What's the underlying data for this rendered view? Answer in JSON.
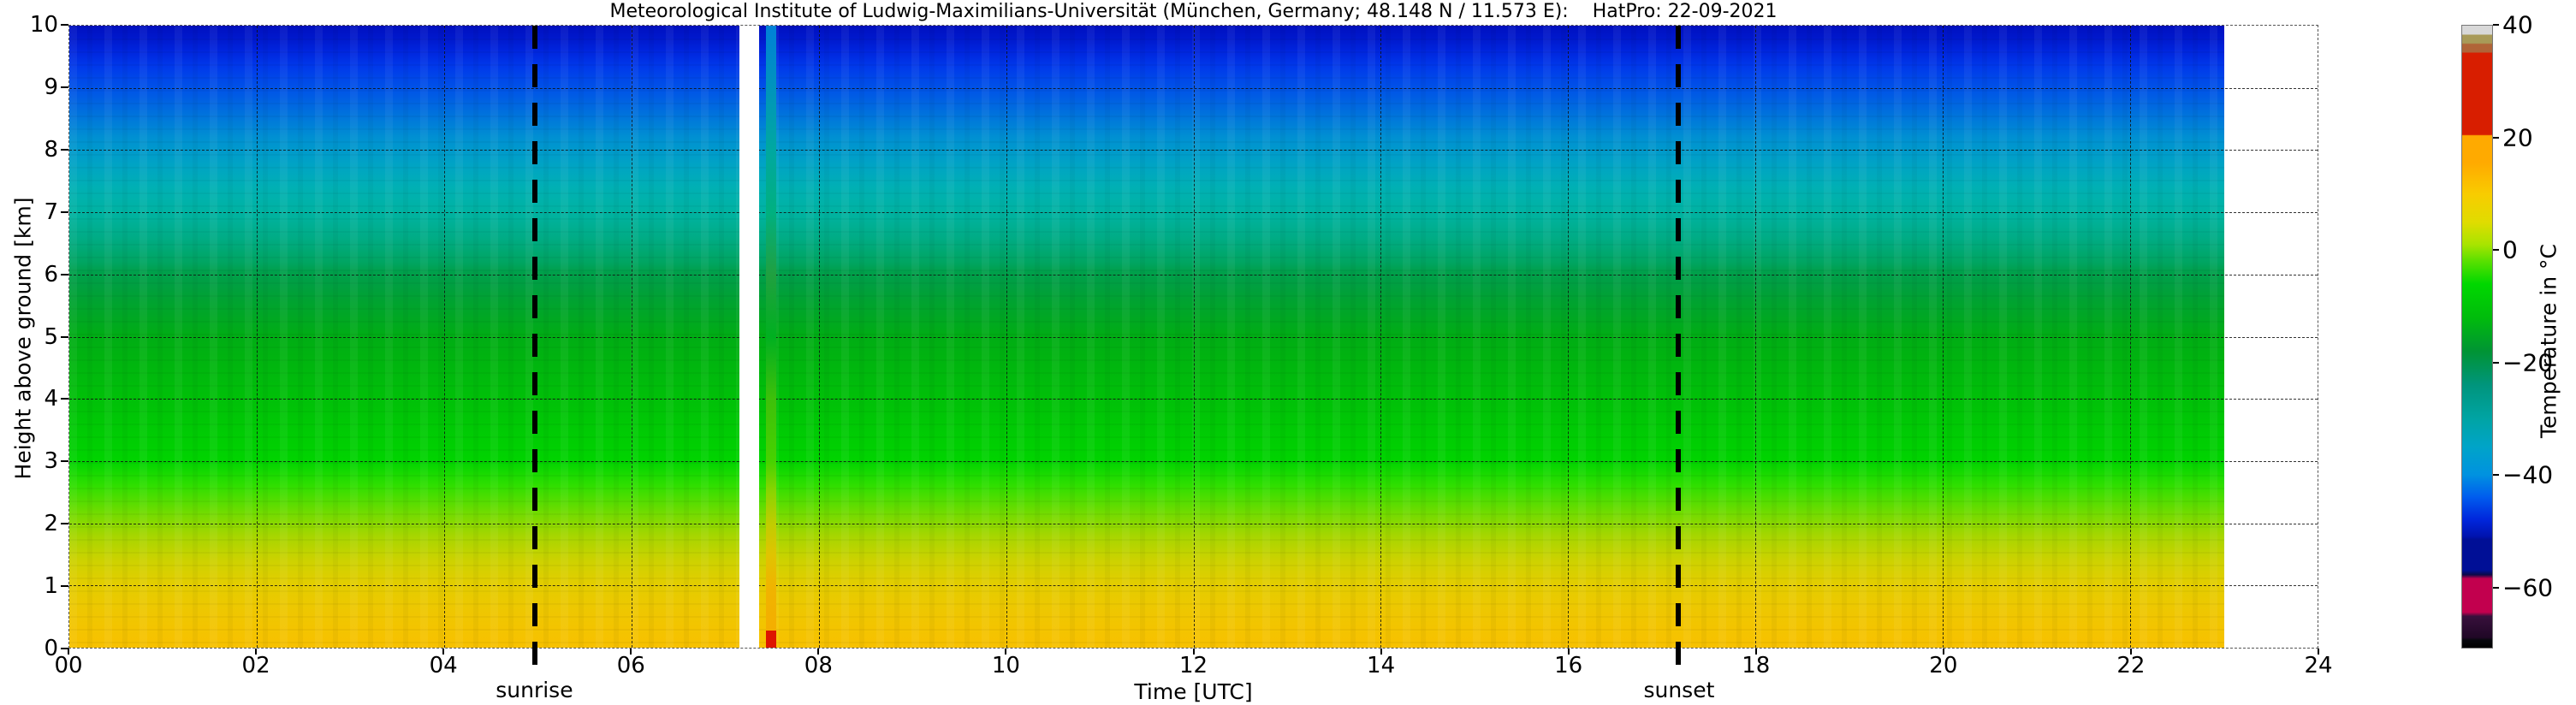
{
  "figure": {
    "title": "Meteorological Institute of Ludwig-Maximilians-Universität (München, Germany; 48.148 N / 11.573 E):    HatPro: 22-09-2021"
  },
  "axes": {
    "x_label": "Time [UTC]",
    "y_label": "Height above ground [km]"
  },
  "colorbar": {
    "label": "Temperature in  °C",
    "range": [
      -70.8,
      40
    ],
    "ticks": [
      {
        "value": 40,
        "label": "40"
      },
      {
        "value": 20,
        "label": "20"
      },
      {
        "value": 0,
        "label": "0"
      },
      {
        "value": -20,
        "label": "−20"
      },
      {
        "value": -40,
        "label": "−40"
      },
      {
        "value": -60,
        "label": "−60"
      }
    ]
  },
  "events": {
    "sunrise": {
      "label": "sunrise",
      "hour": 4.97
    },
    "sunset": {
      "label": "sunset",
      "hour": 17.18
    }
  },
  "chart_data": {
    "type": "heatmap",
    "title": "Meteorological Institute of Ludwig-Maximilians-Universität (München, Germany; 48.148 N / 11.573 E):    HatPro: 22-09-2021",
    "instrument": "HatPro",
    "date": "22-09-2021",
    "xlabel": "Time [UTC]",
    "ylabel": "Height above ground [km]",
    "zlabel": "Temperature in  °C",
    "x_range_hours": [
      0,
      24
    ],
    "y_range_km": [
      0,
      10
    ],
    "grid": {
      "x_hours": [
        2,
        4,
        6,
        8,
        10,
        12,
        14,
        16,
        18,
        20,
        22
      ],
      "y_km": [
        1,
        2,
        3,
        4,
        5,
        6,
        7,
        8,
        9
      ]
    },
    "x_ticks": [
      {
        "hour": 0,
        "label": "00"
      },
      {
        "hour": 2,
        "label": "02"
      },
      {
        "hour": 4,
        "label": "04"
      },
      {
        "hour": 6,
        "label": "06"
      },
      {
        "hour": 8,
        "label": "08"
      },
      {
        "hour": 10,
        "label": "10"
      },
      {
        "hour": 12,
        "label": "12"
      },
      {
        "hour": 14,
        "label": "14"
      },
      {
        "hour": 16,
        "label": "16"
      },
      {
        "hour": 18,
        "label": "18"
      },
      {
        "hour": 20,
        "label": "20"
      },
      {
        "hour": 22,
        "label": "22"
      },
      {
        "hour": 24,
        "label": "24"
      }
    ],
    "y_ticks": [
      {
        "km": 0,
        "label": "0"
      },
      {
        "km": 1,
        "label": "1"
      },
      {
        "km": 2,
        "label": "2"
      },
      {
        "km": 3,
        "label": "3"
      },
      {
        "km": 4,
        "label": "4"
      },
      {
        "km": 5,
        "label": "5"
      },
      {
        "km": 6,
        "label": "6"
      },
      {
        "km": 7,
        "label": "7"
      },
      {
        "km": 8,
        "label": "8"
      },
      {
        "km": 9,
        "label": "9"
      },
      {
        "km": 10,
        "label": "10"
      }
    ],
    "data_time_extent_hours": [
      0,
      23
    ],
    "data_gap_hours": [
      7.15,
      7.36
    ],
    "anomaly_column": {
      "start_hour": 7.44,
      "end_hour": 7.55,
      "surface_red_depth_km": 0.28
    },
    "mean_temperature_profile": [
      {
        "km": 10.0,
        "tempC": -53,
        "color": "#0010c0"
      },
      {
        "km": 9.8,
        "tempC": -52,
        "color": "#0018cc"
      },
      {
        "km": 9.6,
        "tempC": -51,
        "color": "#0024dd"
      },
      {
        "km": 9.35,
        "tempC": -49,
        "color": "#0038ea"
      },
      {
        "km": 9.0,
        "tempC": -46,
        "color": "#0052e8"
      },
      {
        "km": 8.6,
        "tempC": -43,
        "color": "#0070dd"
      },
      {
        "km": 8.2,
        "tempC": -39,
        "color": "#0090d2"
      },
      {
        "km": 7.8,
        "tempC": -35,
        "color": "#00a2c6"
      },
      {
        "km": 7.4,
        "tempC": -31,
        "color": "#00b0b4"
      },
      {
        "km": 7.0,
        "tempC": -28,
        "color": "#00b3a2"
      },
      {
        "km": 6.6,
        "tempC": -25,
        "color": "#00ac86"
      },
      {
        "km": 6.2,
        "tempC": -21,
        "color": "#00a562"
      },
      {
        "km": 6.05,
        "tempC": -19,
        "color": "#00a04c"
      },
      {
        "km": 5.85,
        "tempC": -18,
        "color": "#009f42"
      },
      {
        "km": 5.6,
        "tempC": -16,
        "color": "#00a232"
      },
      {
        "km": 5.0,
        "tempC": -12,
        "color": "#00ad14"
      },
      {
        "km": 4.0,
        "tempC": -8,
        "color": "#00c008"
      },
      {
        "km": 3.0,
        "tempC": -3,
        "color": "#00d400"
      },
      {
        "km": 2.6,
        "tempC": -1,
        "color": "#30df00"
      },
      {
        "km": 2.2,
        "tempC": 2,
        "color": "#6cdc00"
      },
      {
        "km": 1.8,
        "tempC": 5,
        "color": "#a6d600"
      },
      {
        "km": 1.4,
        "tempC": 8,
        "color": "#cdd200"
      },
      {
        "km": 1.0,
        "tempC": 11,
        "color": "#e4cd00"
      },
      {
        "km": 0.6,
        "tempC": 13,
        "color": "#eec701"
      },
      {
        "km": 0.2,
        "tempC": 15,
        "color": "#f5c300"
      },
      {
        "km": 0.0,
        "tempC": 16,
        "color": "#f7c100"
      }
    ],
    "anomaly_profile_colors": [
      {
        "km": 10.0,
        "color": "#0080d8"
      },
      {
        "km": 8.0,
        "color": "#00a8a0"
      },
      {
        "km": 7.0,
        "color": "#00b080"
      },
      {
        "km": 6.0,
        "color": "#20a040"
      },
      {
        "km": 5.0,
        "color": "#00b020"
      },
      {
        "km": 4.0,
        "color": "#3ec00a"
      },
      {
        "km": 3.0,
        "color": "#46d200"
      },
      {
        "km": 2.5,
        "color": "#8cd400"
      },
      {
        "km": 2.0,
        "color": "#c0cc00"
      },
      {
        "km": 1.5,
        "color": "#e0c400"
      },
      {
        "km": 1.0,
        "color": "#f0b400"
      },
      {
        "km": 0.0,
        "color": "#f6ac00"
      }
    ],
    "colormap": [
      {
        "t": 40.0,
        "color": "#d8d8d8"
      },
      {
        "t": 38.5,
        "color": "#d8d8d8"
      },
      {
        "t": 38.3,
        "color": "#a89a58"
      },
      {
        "t": 36.9,
        "color": "#a89a58"
      },
      {
        "t": 36.7,
        "color": "#b06438"
      },
      {
        "t": 35.3,
        "color": "#b06438"
      },
      {
        "t": 35.1,
        "color": "#d81e00"
      },
      {
        "t": 20.6,
        "color": "#d81e00"
      },
      {
        "t": 20.4,
        "color": "#ffaa00"
      },
      {
        "t": 15.5,
        "color": "#ffaa00"
      },
      {
        "t": 10.0,
        "color": "#f8cc00"
      },
      {
        "t": 5.0,
        "color": "#e0dc00"
      },
      {
        "t": 1.0,
        "color": "#a8e400"
      },
      {
        "t": -2.0,
        "color": "#58e000"
      },
      {
        "t": -6.0,
        "color": "#00d800"
      },
      {
        "t": -12.0,
        "color": "#00bc0c"
      },
      {
        "t": -18.0,
        "color": "#009434"
      },
      {
        "t": -24.0,
        "color": "#00957c"
      },
      {
        "t": -30.0,
        "color": "#00a4a4"
      },
      {
        "t": -35.0,
        "color": "#00a4c8"
      },
      {
        "t": -40.0,
        "color": "#0092e0"
      },
      {
        "t": -44.0,
        "color": "#005cee"
      },
      {
        "t": -48.0,
        "color": "#0026dc"
      },
      {
        "t": -51.0,
        "color": "#0013ae"
      },
      {
        "t": -51.5,
        "color": "#000f96"
      },
      {
        "t": -57.0,
        "color": "#000f96"
      },
      {
        "t": -57.8,
        "color": "#0c0a48"
      },
      {
        "t": -58.5,
        "color": "#c2004e"
      },
      {
        "t": -64.5,
        "color": "#c2004e"
      },
      {
        "t": -65.2,
        "color": "#38103c"
      },
      {
        "t": -69.0,
        "color": "#200726"
      },
      {
        "t": -69.4,
        "color": "#08080e"
      },
      {
        "t": -70.8,
        "color": "#000000"
      }
    ]
  }
}
